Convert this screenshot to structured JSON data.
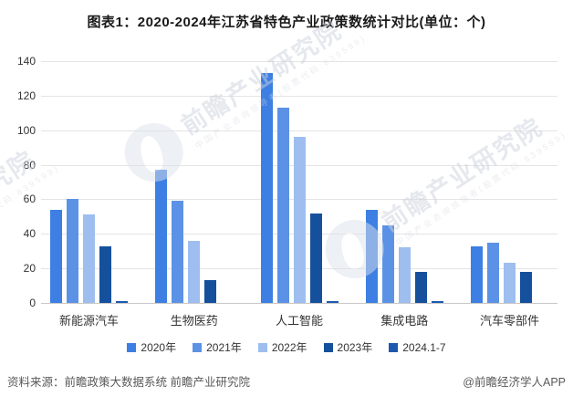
{
  "title": "图表1：2020-2024年江苏省特色产业政策数统计对比(单位：个)",
  "chart_data": {
    "type": "bar",
    "title": "图表1：2020-2024年江苏省特色产业政策数统计对比(单位：个)",
    "categories": [
      "新能源汽车",
      "生物医药",
      "人工智能",
      "集成电路",
      "汽车零部件"
    ],
    "series": [
      {
        "name": "2020年",
        "color": "#3D7FE2",
        "values": [
          54,
          77,
          133,
          54,
          33
        ]
      },
      {
        "name": "2021年",
        "color": "#5C92E5",
        "values": [
          60,
          59,
          113,
          45,
          35
        ]
      },
      {
        "name": "2022年",
        "color": "#9DBEEF",
        "values": [
          51,
          36,
          96,
          32,
          23
        ]
      },
      {
        "name": "2023年",
        "color": "#15509D",
        "values": [
          33,
          13,
          52,
          18,
          18
        ]
      },
      {
        "name": "2024.1-7",
        "color": "#1C59AE",
        "values": [
          1,
          0,
          1,
          1,
          0
        ]
      }
    ],
    "ylim": [
      0,
      140
    ],
    "ytick_step": 20,
    "yticks": [
      0,
      20,
      40,
      60,
      80,
      100,
      120,
      140
    ],
    "grid": true,
    "legend_position": "bottom",
    "xlabel": "",
    "ylabel": ""
  },
  "footer": {
    "source": "资料来源：前瞻政策大数据系统 前瞻产业研究院",
    "credit": "@前瞻经济学人APP"
  },
  "watermark": {
    "text": "前瞻产业研究院",
    "subtext": "中国产业咨询领导者(股票代码:839599)"
  }
}
